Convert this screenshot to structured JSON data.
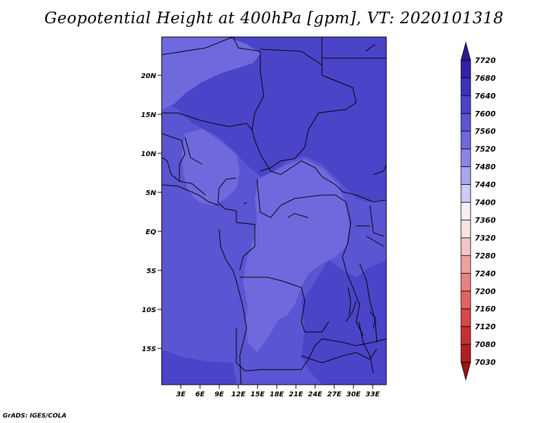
{
  "title": "Geopotential Height at 400hPa [gpm], VT: 2020101318",
  "credit": "GrADS: IGES/COLA",
  "map": {
    "lat_ticks": [
      "20N",
      "15N",
      "10N",
      "5N",
      "EQ",
      "5S",
      "10S",
      "15S"
    ],
    "lon_ticks": [
      "3E",
      "6E",
      "9E",
      "12E",
      "15E",
      "18E",
      "21E",
      "24E",
      "27E",
      "30E",
      "33E"
    ]
  },
  "colorbar": {
    "levels": [
      "7720",
      "7680",
      "7640",
      "7600",
      "7560",
      "7520",
      "7480",
      "7440",
      "7400",
      "7360",
      "7320",
      "7280",
      "7240",
      "7200",
      "7160",
      "7120",
      "7080",
      "7030"
    ],
    "colors": [
      "#2a1d8f",
      "#3220a8",
      "#3a33bc",
      "#4a44c8",
      "#5a55d2",
      "#6e6ade",
      "#8a86e6",
      "#aaa6ee",
      "#ccccf4",
      "#f4f0fa",
      "#fbe2e2",
      "#f6c4c4",
      "#f0a0a0",
      "#e88282",
      "#e06464",
      "#d84848",
      "#c83030",
      "#b02020",
      "#9a1414"
    ]
  },
  "palette": {
    "z7600": "#4a44c8",
    "z7560": "#5a55d2",
    "z7520": "#6e6ade"
  }
}
